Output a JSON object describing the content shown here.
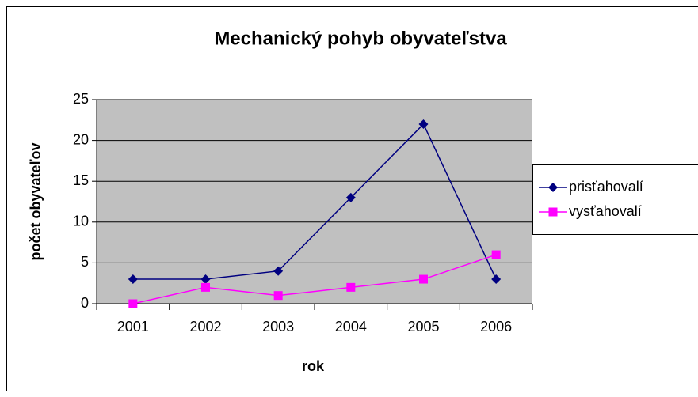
{
  "chart_data": {
    "type": "line",
    "title": "Mechanický pohyb obyvateľstva",
    "x_label": "rok",
    "y_label": "počet obyvateľov",
    "categories": [
      "2001",
      "2002",
      "2003",
      "2004",
      "2005",
      "2006"
    ],
    "series": [
      {
        "name": "prisťahovalí",
        "color": "#000080",
        "marker": "diamond",
        "values": [
          3,
          3,
          4,
          13,
          22,
          3
        ]
      },
      {
        "name": "vysťahovalí",
        "color": "#ff00ff",
        "marker": "square",
        "values": [
          0,
          2,
          1,
          2,
          3,
          6
        ]
      }
    ],
    "ylim": [
      0,
      25
    ],
    "yticks": [
      0,
      5,
      10,
      15,
      20,
      25
    ],
    "grid": true,
    "legend": "right"
  }
}
